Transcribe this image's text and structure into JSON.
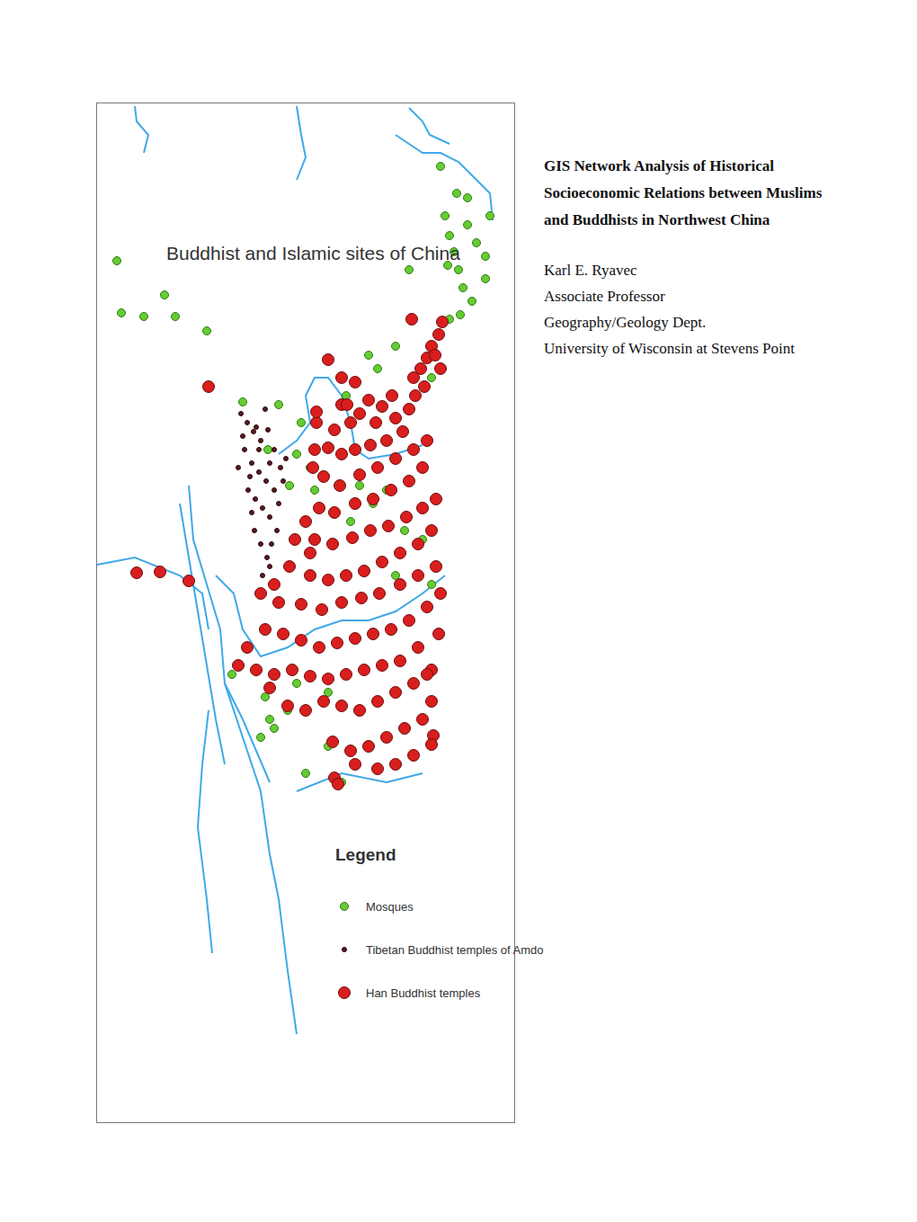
{
  "document": {
    "title_lines": [
      "GIS Network Analysis of Historical",
      "Socioeconomic Relations between Muslims",
      "and Buddhists in Northwest China"
    ],
    "author_lines": [
      "Karl E. Ryavec",
      "Associate Professor",
      "Geography/Geology Dept.",
      "University of Wisconsin at Stevens Point"
    ]
  },
  "chart_data": {
    "type": "scatter",
    "title": "Buddhist and Islamic sites of China",
    "legend_title": "Legend",
    "legend": "bottom right",
    "tick_labels": false,
    "grid": false,
    "xlim": [
      108,
      572
    ],
    "ylim": [
      115,
      1248
    ],
    "series": [
      {
        "name": "Mosques",
        "color": "#66cc33",
        "marker": "circle",
        "x": [
          495,
          500,
          505,
          510,
          498,
          520,
          530,
          540,
          515,
          525,
          540,
          545,
          520,
          490,
          508,
          512,
          455,
          440,
          410,
          420,
          130,
          183,
          135,
          160,
          195,
          230,
          270,
          385,
          335,
          345,
          350,
          330,
          322,
          310,
          298,
          400,
          415,
          430,
          390,
          450,
          470,
          440,
          480,
          265,
          258,
          295,
          300,
          305,
          290,
          320,
          330,
          178,
          500,
          480,
          365,
          380,
          340,
          365
        ],
        "y": [
          240,
          262,
          280,
          300,
          295,
          250,
          270,
          285,
          320,
          335,
          310,
          240,
          220,
          185,
          215,
          350,
          300,
          385,
          395,
          410,
          290,
          328,
          348,
          352,
          352,
          368,
          447,
          440,
          470,
          520,
          545,
          505,
          540,
          450,
          500,
          540,
          560,
          545,
          580,
          590,
          600,
          640,
          650,
          740,
          750,
          775,
          800,
          810,
          820,
          790,
          760,
          636,
          355,
          420,
          830,
          870,
          860,
          770
        ]
      },
      {
        "name": "Tibetan Buddhist temples of Amdo",
        "color": "#5a1a1f",
        "marker": "circle",
        "x": [
          268,
          275,
          282,
          290,
          298,
          305,
          272,
          280,
          288,
          296,
          305,
          312,
          318,
          276,
          284,
          292,
          300,
          308,
          283,
          290,
          297,
          285,
          295,
          270,
          310,
          302,
          278,
          288,
          300,
          315,
          265,
          292,
          300,
          280
        ],
        "y": [
          460,
          470,
          480,
          490,
          478,
          500,
          500,
          515,
          525,
          535,
          545,
          520,
          510,
          545,
          555,
          565,
          575,
          590,
          590,
          605,
          620,
          475,
          455,
          485,
          560,
          605,
          530,
          500,
          515,
          535,
          520,
          640,
          630,
          570
        ]
      },
      {
        "name": "Han Buddhist temples",
        "color": "#d91e1e",
        "marker": "circle",
        "x": [
          492,
          488,
          480,
          475,
          468,
          460,
          484,
          490,
          472,
          462,
          436,
          425,
          410,
          400,
          390,
          380,
          372,
          418,
          440,
          455,
          448,
          430,
          412,
          395,
          380,
          365,
          352,
          348,
          360,
          378,
          400,
          420,
          440,
          460,
          475,
          470,
          455,
          435,
          415,
          395,
          372,
          355,
          340,
          328,
          350,
          370,
          392,
          412,
          432,
          452,
          470,
          485,
          480,
          465,
          445,
          425,
          405,
          385,
          365,
          345,
          322,
          305,
          290,
          310,
          335,
          358,
          380,
          402,
          422,
          445,
          465,
          485,
          490,
          475,
          455,
          435,
          415,
          395,
          375,
          355,
          335,
          315,
          295,
          275,
          265,
          285,
          305,
          325,
          345,
          365,
          385,
          405,
          425,
          445,
          465,
          488,
          480,
          460,
          440,
          420,
          400,
          380,
          360,
          340,
          320,
          300,
          470,
          450,
          430,
          410,
          390,
          370,
          480,
          460,
          440,
          420,
          395,
          372,
          376,
          482,
          480,
          386,
          350,
          365,
          380,
          395,
          345,
          352,
          232,
          458,
          475,
          152,
          210,
          178
        ],
        "y": [
          358,
          372,
          385,
          398,
          410,
          420,
          395,
          410,
          430,
          440,
          440,
          452,
          445,
          460,
          470,
          450,
          478,
          470,
          465,
          455,
          480,
          490,
          495,
          500,
          505,
          498,
          470,
          520,
          530,
          540,
          528,
          520,
          510,
          500,
          490,
          520,
          535,
          545,
          555,
          560,
          570,
          565,
          580,
          600,
          600,
          605,
          598,
          590,
          585,
          575,
          565,
          555,
          590,
          605,
          615,
          625,
          635,
          640,
          645,
          640,
          630,
          650,
          660,
          670,
          672,
          678,
          670,
          665,
          660,
          650,
          640,
          630,
          660,
          675,
          690,
          700,
          705,
          710,
          715,
          720,
          712,
          705,
          700,
          720,
          740,
          745,
          750,
          745,
          752,
          755,
          750,
          745,
          740,
          735,
          720,
          705,
          745,
          760,
          770,
          780,
          790,
          785,
          780,
          790,
          785,
          765,
          800,
          810,
          820,
          830,
          835,
          825,
          780,
          840,
          850,
          855,
          850,
          865,
          872,
          818,
          828,
          450,
          500,
          400,
          420,
          425,
          615,
          458,
          430,
          355,
          750,
          637,
          646,
          636
        ]
      }
    ]
  }
}
